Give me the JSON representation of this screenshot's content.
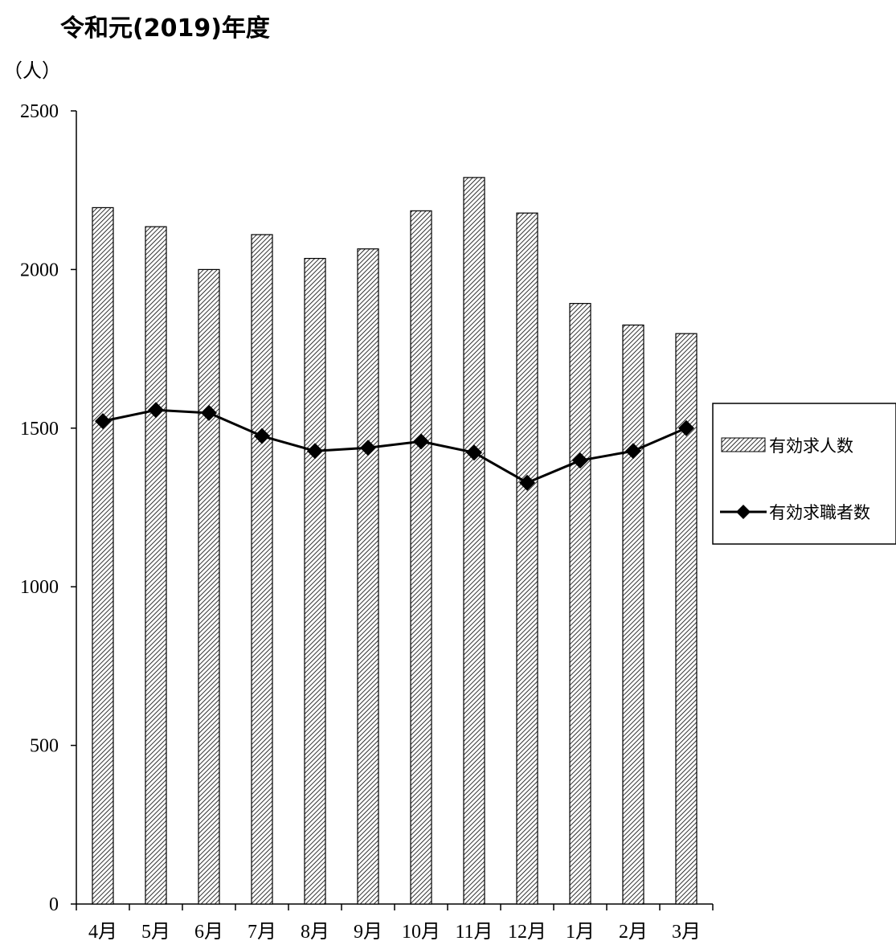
{
  "chart_data": {
    "type": "bar",
    "title": "令和元(2019)年度",
    "unit_label": "（人）",
    "xlabel": "",
    "ylabel": "",
    "categories": [
      "4月",
      "5月",
      "6月",
      "7月",
      "8月",
      "9月",
      "10月",
      "11月",
      "12月",
      "1月",
      "2月",
      "3月"
    ],
    "ylim": [
      0,
      2500
    ],
    "yticks": [
      0,
      500,
      1000,
      1500,
      2000,
      2500
    ],
    "grid": false,
    "legend_position": "right",
    "series": [
      {
        "name": "有効求人数",
        "type": "bar",
        "pattern": "diagonal-hatch",
        "values": [
          2195,
          2135,
          2000,
          2110,
          2035,
          2065,
          2185,
          2290,
          2178,
          1893,
          1825,
          1798
        ]
      },
      {
        "name": "有効求職者数",
        "type": "line",
        "marker": "diamond",
        "color": "#000000",
        "values": [
          1522,
          1557,
          1548,
          1475,
          1428,
          1438,
          1458,
          1423,
          1328,
          1398,
          1428,
          1500
        ]
      }
    ]
  }
}
